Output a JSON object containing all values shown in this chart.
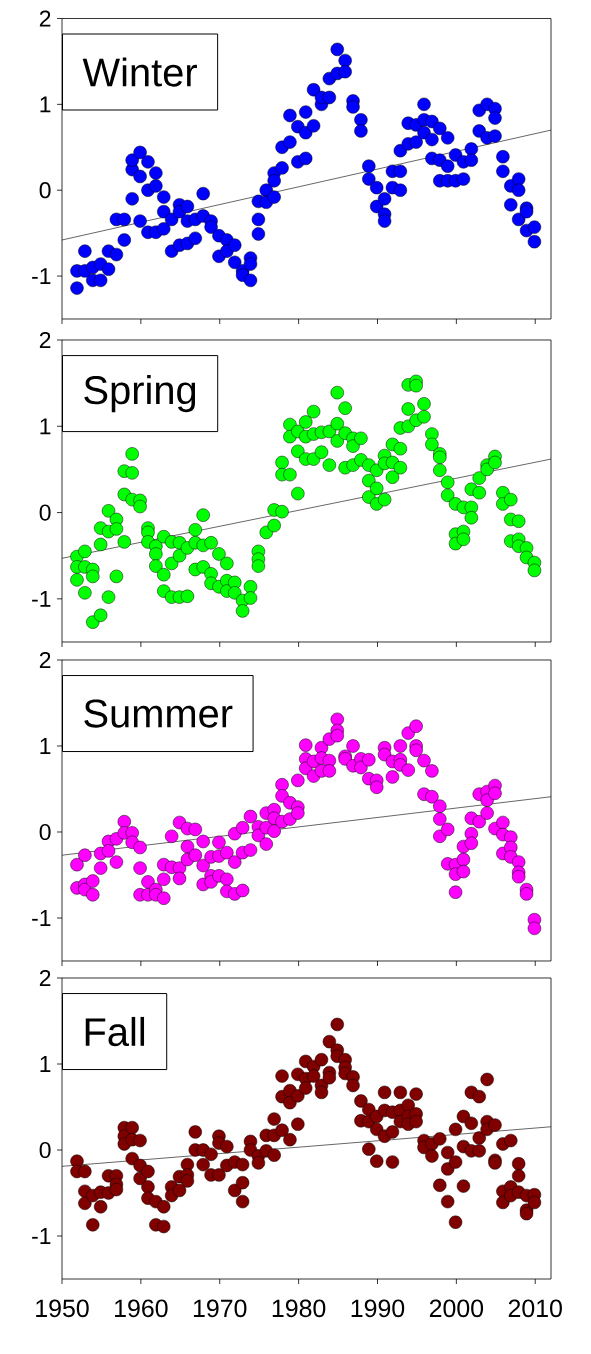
{
  "chart_data": [
    {
      "type": "scatter",
      "title": "Winter",
      "xlim": [
        1950,
        2012
      ],
      "ylim": [
        -1.5,
        2
      ],
      "xticks": [
        1950,
        1960,
        1970,
        1980,
        1990,
        2000,
        2010
      ],
      "yticks": [
        -1,
        0,
        1,
        2
      ],
      "tick_labels": "y",
      "marker": "circle",
      "series": [
        {
          "color": "#0000ff",
          "x": [
            1951.9,
            1951.9,
            1952.9,
            1952.9,
            1953.9,
            1953.9,
            1954.9,
            1954.9,
            1955.9,
            1955.9,
            1956.9,
            1956.9,
            1957.9,
            1957.9,
            1958.9,
            1958.9,
            1958.9,
            1959.9,
            1959.9,
            1959.9,
            1960.9,
            1960.9,
            1960.9,
            1961.9,
            1961.9,
            1961.9,
            1962.9,
            1962.9,
            1962.9,
            1963.9,
            1963.9,
            1964.9,
            1964.9,
            1964.9,
            1965.9,
            1965.9,
            1965.9,
            1966.9,
            1966.9,
            1967.9,
            1967.9,
            1968.9,
            1968.9,
            1969.9,
            1969.9,
            1970.9,
            1970.9,
            1971.9,
            1971.9,
            1972.9,
            1972.9,
            1973.9,
            1973.9,
            1973.9,
            1974.9,
            1974.9,
            1974.9,
            1975.9,
            1975.9,
            1976.9,
            1976.9,
            1976.9,
            1977.9,
            1977.9,
            1978.9,
            1978.9,
            1979.9,
            1979.9,
            1980.9,
            1980.9,
            1980.9,
            1981.9,
            1981.9,
            1982.9,
            1982.9,
            1983.9,
            1983.9,
            1984.9,
            1984.9,
            1985.9,
            1985.9,
            1986.9,
            1986.9,
            1987.9,
            1987.9,
            1988.9,
            1988.9,
            1989.9,
            1989.9,
            1990.9,
            1990.9,
            1990.9,
            1991.9,
            1991.9,
            1992.9,
            1992.9,
            1992.9,
            1993.9,
            1993.9,
            1994.9,
            1994.9,
            1995.9,
            1995.9,
            1995.9,
            1996.9,
            1996.9,
            1996.9,
            1997.9,
            1997.9,
            1997.9,
            1998.9,
            1998.9,
            1998.9,
            1999.9,
            1999.9,
            2000.9,
            2000.9,
            2001.9,
            2001.9,
            2002.9,
            2002.9,
            2003.9,
            2003.9,
            2004.9,
            2004.9,
            2004.9,
            2005.9,
            2005.9,
            2006.9,
            2006.9,
            2007.9,
            2007.9,
            2007.9,
            2008.9,
            2008.9,
            2008.9,
            2009.9,
            2009.9
          ],
          "values": [
            -1.14,
            -0.94,
            -0.71,
            -0.94,
            -1.05,
            -0.9,
            -1.05,
            -0.86,
            -0.92,
            -0.71,
            -0.75,
            -0.34,
            -0.34,
            -0.58,
            -0.1,
            0.24,
            0.35,
            0.44,
            0.16,
            -0.36,
            0.33,
            0.0,
            -0.49,
            0.2,
            0.05,
            -0.49,
            -0.08,
            -0.25,
            -0.45,
            -0.34,
            -0.71,
            -0.17,
            -0.25,
            -0.64,
            -0.19,
            -0.36,
            -0.62,
            -0.34,
            -0.56,
            -0.04,
            -0.3,
            -0.36,
            -0.43,
            -0.53,
            -0.77,
            -0.58,
            -0.71,
            -0.64,
            -0.84,
            -0.94,
            -0.99,
            -0.79,
            -0.86,
            -1.05,
            -0.13,
            -0.34,
            -0.51,
            0.0,
            -0.14,
            0.2,
            0.11,
            -0.08,
            0.5,
            0.26,
            0.56,
            0.87,
            0.74,
            0.33,
            0.91,
            0.67,
            0.37,
            1.17,
            0.75,
            1.0,
            1.08,
            1.3,
            1.08,
            1.64,
            1.36,
            1.51,
            1.38,
            1.04,
            0.97,
            0.82,
            0.69,
            0.28,
            0.13,
            0.03,
            -0.19,
            -0.1,
            -0.28,
            -0.36,
            0.22,
            0.03,
            0.46,
            0.22,
            0.0,
            0.78,
            0.54,
            0.76,
            0.56,
            1.0,
            0.82,
            0.67,
            0.8,
            0.59,
            0.37,
            0.72,
            0.35,
            0.11,
            0.61,
            0.28,
            0.11,
            0.41,
            0.11,
            0.33,
            0.13,
            0.48,
            0.35,
            0.93,
            0.69,
            1.0,
            0.61,
            0.95,
            0.84,
            0.63,
            0.39,
            0.22,
            0.05,
            -0.17,
            0.13,
            0.0,
            -0.34,
            -0.21,
            -0.25,
            -0.47,
            -0.43,
            -0.6
          ]
        },
        {
          "type": "line",
          "color": "#000000",
          "marker": "none",
          "x": [
            1950,
            2012
          ],
          "values": [
            -0.58,
            0.7
          ]
        }
      ]
    },
    {
      "type": "scatter",
      "title": "Spring",
      "xlim": [
        1950,
        2012
      ],
      "ylim": [
        -1.5,
        2
      ],
      "xticks": [
        1950,
        1960,
        1970,
        1980,
        1990,
        2000,
        2010
      ],
      "yticks": [
        -1,
        0,
        1,
        2
      ],
      "tick_labels": "y",
      "marker": "circle",
      "series": [
        {
          "color": "#00ff00",
          "x": [
            1951.9,
            1951.9,
            1951.9,
            1952.9,
            1952.9,
            1952.9,
            1953.9,
            1953.9,
            1953.9,
            1954.9,
            1954.9,
            1954.9,
            1955.9,
            1955.9,
            1955.9,
            1956.9,
            1956.9,
            1956.9,
            1957.9,
            1957.9,
            1957.9,
            1958.9,
            1958.9,
            1958.9,
            1959.9,
            1959.9,
            1960.9,
            1960.9,
            1960.9,
            1961.9,
            1961.9,
            1961.9,
            1962.9,
            1962.9,
            1962.9,
            1963.9,
            1963.9,
            1963.9,
            1964.9,
            1964.9,
            1964.9,
            1965.9,
            1965.9,
            1966.9,
            1966.9,
            1966.9,
            1967.9,
            1967.9,
            1967.9,
            1968.9,
            1968.9,
            1968.9,
            1969.9,
            1969.9,
            1970.9,
            1970.9,
            1970.9,
            1971.9,
            1971.9,
            1972.9,
            1972.9,
            1973.9,
            1973.9,
            1974.9,
            1974.9,
            1974.9,
            1975.9,
            1976.9,
            1976.9,
            1977.9,
            1977.9,
            1977.9,
            1978.9,
            1978.9,
            1978.9,
            1979.9,
            1979.9,
            1979.9,
            1980.9,
            1980.9,
            1980.9,
            1981.9,
            1981.9,
            1981.9,
            1982.9,
            1982.9,
            1983.9,
            1983.9,
            1984.9,
            1984.9,
            1984.9,
            1985.9,
            1985.9,
            1985.9,
            1986.9,
            1986.9,
            1986.9,
            1987.9,
            1987.9,
            1988.9,
            1988.9,
            1988.9,
            1989.9,
            1989.9,
            1989.9,
            1990.9,
            1990.9,
            1990.9,
            1991.9,
            1991.9,
            1991.9,
            1992.9,
            1992.9,
            1992.9,
            1993.9,
            1993.9,
            1993.9,
            1994.9,
            1994.9,
            1994.9,
            1995.9,
            1995.9,
            1996.9,
            1996.9,
            1997.9,
            1997.9,
            1997.9,
            1998.9,
            1998.9,
            1999.9,
            1999.9,
            1999.9,
            2000.9,
            2000.9,
            2000.9,
            2001.9,
            2001.9,
            2001.9,
            2002.9,
            2002.9,
            2003.9,
            2003.9,
            2004.9,
            2004.9,
            2005.9,
            2005.9,
            2006.9,
            2006.9,
            2006.9,
            2007.9,
            2007.9,
            2007.9,
            2008.9,
            2008.9,
            2009.9,
            2009.9
          ],
          "values": [
            -0.51,
            -0.63,
            -0.78,
            -0.45,
            -0.63,
            -0.93,
            -0.66,
            -0.74,
            -1.27,
            -0.18,
            -0.37,
            -1.19,
            0.02,
            -0.22,
            -0.98,
            -0.08,
            -0.19,
            -0.74,
            0.48,
            0.21,
            -0.34,
            0.68,
            0.46,
            0.15,
            0.14,
            0.07,
            -0.18,
            -0.23,
            -0.34,
            -0.39,
            -0.48,
            -0.62,
            -0.28,
            -0.72,
            -0.91,
            -0.34,
            -0.59,
            -0.98,
            -0.35,
            -0.5,
            -0.98,
            -0.41,
            -0.97,
            -0.2,
            -0.35,
            -0.66,
            -0.03,
            -0.38,
            -0.63,
            -0.35,
            -0.71,
            -0.82,
            -0.48,
            -0.86,
            -0.59,
            -0.79,
            -0.91,
            -0.81,
            -0.93,
            -1.02,
            -1.14,
            -0.86,
            -0.99,
            -0.45,
            -0.54,
            -0.62,
            -0.23,
            0.03,
            -0.15,
            0.58,
            0.44,
            0.01,
            1.02,
            0.88,
            0.44,
            0.94,
            0.71,
            0.22,
            1.05,
            0.88,
            0.62,
            1.17,
            0.91,
            0.62,
            0.93,
            0.7,
            0.94,
            0.55,
            1.39,
            1.03,
            0.83,
            1.21,
            0.92,
            0.52,
            0.86,
            0.77,
            0.55,
            0.86,
            0.61,
            0.55,
            0.37,
            0.18,
            0.49,
            0.28,
            0.1,
            0.66,
            0.57,
            0.15,
            0.79,
            0.58,
            0.41,
            0.98,
            0.74,
            0.52,
            1.48,
            1.2,
            1.0,
            1.52,
            1.47,
            1.07,
            1.26,
            1.11,
            0.91,
            0.79,
            0.68,
            0.64,
            0.49,
            0.35,
            0.2,
            0.1,
            -0.25,
            -0.36,
            0.06,
            -0.22,
            -0.31,
            0.27,
            0.06,
            -0.06,
            0.4,
            0.23,
            0.55,
            0.5,
            0.65,
            0.58,
            0.23,
            0.1,
            0.15,
            -0.08,
            -0.33,
            -0.1,
            -0.31,
            -0.39,
            -0.41,
            -0.52,
            -0.58,
            -0.67
          ]
        },
        {
          "type": "line",
          "color": "#000000",
          "marker": "none",
          "x": [
            1950,
            2012
          ],
          "values": [
            -0.53,
            0.62
          ]
        }
      ]
    },
    {
      "type": "scatter",
      "title": "Summer",
      "xlim": [
        1950,
        2012
      ],
      "ylim": [
        -1.5,
        2
      ],
      "xticks": [
        1950,
        1960,
        1970,
        1980,
        1990,
        2000,
        2010
      ],
      "yticks": [
        -1,
        0,
        1,
        2
      ],
      "tick_labels": "y",
      "marker": "circle",
      "series": [
        {
          "color": "#ff00ff",
          "x": [
            1951.9,
            1951.9,
            1952.9,
            1952.9,
            1952.9,
            1953.9,
            1953.9,
            1954.9,
            1954.9,
            1955.9,
            1955.9,
            1956.9,
            1956.9,
            1957.9,
            1957.9,
            1958.9,
            1958.9,
            1959.9,
            1959.9,
            1959.9,
            1960.9,
            1960.9,
            1961.9,
            1961.9,
            1962.9,
            1962.9,
            1962.9,
            1963.9,
            1963.9,
            1964.9,
            1964.9,
            1964.9,
            1965.9,
            1965.9,
            1965.9,
            1966.9,
            1966.9,
            1967.9,
            1967.9,
            1967.9,
            1968.9,
            1968.9,
            1968.9,
            1969.9,
            1969.9,
            1969.9,
            1970.9,
            1970.9,
            1970.9,
            1971.9,
            1971.9,
            1971.9,
            1972.9,
            1972.9,
            1972.9,
            1973.9,
            1973.9,
            1974.9,
            1974.9,
            1975.9,
            1975.9,
            1975.9,
            1976.9,
            1976.9,
            1976.9,
            1977.9,
            1977.9,
            1977.9,
            1978.9,
            1978.9,
            1979.9,
            1979.9,
            1979.9,
            1980.9,
            1980.9,
            1980.9,
            1981.9,
            1981.9,
            1982.9,
            1982.9,
            1982.9,
            1983.9,
            1983.9,
            1983.9,
            1984.9,
            1984.9,
            1984.9,
            1985.9,
            1985.9,
            1986.9,
            1986.9,
            1987.9,
            1987.9,
            1988.9,
            1988.9,
            1989.9,
            1989.9,
            1990.9,
            1990.9,
            1991.9,
            1991.9,
            1992.9,
            1992.9,
            1992.9,
            1993.9,
            1993.9,
            1994.9,
            1994.9,
            1994.9,
            1995.9,
            1995.9,
            1996.9,
            1996.9,
            1997.9,
            1997.9,
            1997.9,
            1998.9,
            1998.9,
            1999.9,
            1999.9,
            1999.9,
            2000.9,
            2000.9,
            2000.9,
            2001.9,
            2001.9,
            2001.9,
            2002.9,
            2002.9,
            2003.9,
            2003.9,
            2003.9,
            2004.9,
            2004.9,
            2004.9,
            2005.9,
            2005.9,
            2005.9,
            2006.9,
            2006.9,
            2006.9,
            2007.9,
            2007.9,
            2007.9,
            2008.9,
            2008.9,
            2009.9,
            2009.9
          ],
          "values": [
            -0.38,
            -0.65,
            -0.27,
            -0.61,
            -0.67,
            -0.57,
            -0.73,
            -0.25,
            -0.42,
            -0.11,
            -0.22,
            -0.08,
            -0.35,
            0.12,
            -0.01,
            -0.01,
            -0.12,
            -0.18,
            -0.42,
            -0.73,
            -0.58,
            -0.73,
            -0.67,
            -0.73,
            -0.38,
            -0.55,
            -0.77,
            -0.05,
            -0.41,
            0.11,
            -0.42,
            -0.54,
            0.04,
            -0.17,
            -0.32,
            0.03,
            -0.27,
            -0.11,
            -0.39,
            -0.61,
            -0.29,
            -0.51,
            -0.58,
            -0.12,
            -0.28,
            -0.51,
            -0.24,
            -0.55,
            -0.69,
            -0.02,
            -0.35,
            -0.72,
            0.05,
            -0.24,
            -0.68,
            0.18,
            -0.21,
            0.06,
            -0.04,
            0.22,
            0.05,
            -0.14,
            0.26,
            0.16,
            0.01,
            0.55,
            0.42,
            0.12,
            0.34,
            0.15,
            0.6,
            0.29,
            0.22,
            1.01,
            0.85,
            0.74,
            0.82,
            0.65,
            0.98,
            0.86,
            0.71,
            1.08,
            0.83,
            0.71,
            1.31,
            1.18,
            1.12,
            0.88,
            0.85,
            1.0,
            0.77,
            0.85,
            0.75,
            0.84,
            0.62,
            0.6,
            0.52,
            0.98,
            0.9,
            0.82,
            0.64,
            1.0,
            0.84,
            0.78,
            1.15,
            0.72,
            1.23,
            1.0,
            0.95,
            0.83,
            0.44,
            0.71,
            0.41,
            0.3,
            0.15,
            -0.05,
            0.03,
            -0.37,
            -0.38,
            -0.49,
            -0.7,
            -0.17,
            -0.32,
            -0.46,
            0.16,
            -0.02,
            -0.13,
            0.44,
            0.12,
            0.47,
            0.37,
            0.22,
            0.54,
            0.45,
            0.04,
            0.11,
            -0.03,
            -0.25,
            -0.06,
            -0.18,
            -0.29,
            -0.35,
            -0.47,
            -0.52,
            -0.67,
            -0.72,
            -1.02,
            -1.12
          ]
        },
        {
          "type": "line",
          "color": "#000000",
          "marker": "none",
          "x": [
            1950,
            2012
          ],
          "values": [
            -0.27,
            0.41
          ]
        }
      ]
    },
    {
      "type": "scatter",
      "title": "Fall",
      "xlim": [
        1950,
        2012
      ],
      "ylim": [
        -1.5,
        2
      ],
      "xticks": [
        1950,
        1960,
        1970,
        1980,
        1990,
        2000,
        2010
      ],
      "yticks": [
        -1,
        0,
        1,
        2
      ],
      "marker": "circle",
      "series": [
        {
          "color": "#800000",
          "x": [
            1951.9,
            1951.9,
            1952.9,
            1952.9,
            1952.9,
            1953.9,
            1953.9,
            1954.9,
            1954.9,
            1955.9,
            1955.9,
            1956.9,
            1956.9,
            1956.9,
            1957.9,
            1957.9,
            1957.9,
            1958.9,
            1958.9,
            1958.9,
            1959.9,
            1959.9,
            1959.9,
            1960.9,
            1960.9,
            1960.9,
            1961.9,
            1961.9,
            1962.9,
            1962.9,
            1963.9,
            1963.9,
            1964.9,
            1964.9,
            1965.9,
            1965.9,
            1965.9,
            1966.9,
            1966.9,
            1967.9,
            1967.9,
            1968.9,
            1968.9,
            1969.9,
            1969.9,
            1969.9,
            1970.9,
            1970.9,
            1971.9,
            1971.9,
            1972.9,
            1972.9,
            1972.9,
            1973.9,
            1973.9,
            1974.9,
            1974.9,
            1975.9,
            1975.9,
            1976.9,
            1976.9,
            1976.9,
            1977.9,
            1977.9,
            1977.9,
            1978.9,
            1978.9,
            1978.9,
            1979.9,
            1979.9,
            1979.9,
            1980.9,
            1980.9,
            1980.9,
            1981.9,
            1981.9,
            1982.9,
            1982.9,
            1982.9,
            1983.9,
            1983.9,
            1983.9,
            1984.9,
            1984.9,
            1984.9,
            1985.9,
            1985.9,
            1985.9,
            1986.9,
            1986.9,
            1987.9,
            1987.9,
            1988.9,
            1988.9,
            1988.9,
            1989.9,
            1989.9,
            1989.9,
            1990.9,
            1990.9,
            1990.9,
            1991.9,
            1991.9,
            1991.9,
            1992.9,
            1992.9,
            1992.9,
            1993.9,
            1993.9,
            1993.9,
            1994.9,
            1994.9,
            1994.9,
            1995.9,
            1995.9,
            1996.9,
            1996.9,
            1997.9,
            1997.9,
            1998.9,
            1998.9,
            1998.9,
            1999.9,
            1999.9,
            1999.9,
            2000.9,
            2000.9,
            2000.9,
            2001.9,
            2001.9,
            2001.9,
            2002.9,
            2002.9,
            2002.9,
            2003.9,
            2003.9,
            2003.9,
            2004.9,
            2004.9,
            2004.9,
            2005.9,
            2005.9,
            2005.9,
            2006.9,
            2006.9,
            2006.9,
            2007.9,
            2007.9,
            2007.9,
            2008.9,
            2008.9,
            2008.9,
            2009.9,
            2009.9
          ],
          "values": [
            -0.13,
            -0.25,
            -0.25,
            -0.48,
            -0.62,
            -0.53,
            -0.87,
            -0.49,
            -0.66,
            -0.3,
            -0.5,
            -0.3,
            -0.4,
            -0.46,
            0.26,
            0.16,
            0.07,
            0.26,
            0.12,
            -0.1,
            0.11,
            -0.18,
            -0.33,
            -0.25,
            -0.43,
            -0.56,
            -0.6,
            -0.87,
            -0.66,
            -0.89,
            -0.43,
            -0.53,
            -0.31,
            -0.47,
            -0.17,
            -0.29,
            -0.36,
            0.21,
            0.0,
            0.0,
            -0.17,
            -0.05,
            -0.29,
            0.16,
            0.08,
            -0.29,
            0.04,
            -0.18,
            -0.14,
            -0.47,
            -0.17,
            -0.38,
            -0.6,
            0.1,
            0.0,
            -0.07,
            -0.15,
            0.17,
            -0.01,
            0.36,
            0.17,
            -0.06,
            0.86,
            0.62,
            0.23,
            0.69,
            0.55,
            0.12,
            0.88,
            0.63,
            0.3,
            1.03,
            0.83,
            0.72,
            0.97,
            0.86,
            1.05,
            0.75,
            0.67,
            1.26,
            0.9,
            0.84,
            1.46,
            1.16,
            1.09,
            1.05,
            0.96,
            0.89,
            0.85,
            0.75,
            0.57,
            0.34,
            0.47,
            0.33,
            0.01,
            0.39,
            0.24,
            -0.13,
            0.67,
            0.46,
            0.16,
            0.44,
            0.21,
            -0.14,
            0.67,
            0.46,
            0.33,
            0.52,
            0.39,
            0.3,
            0.65,
            0.42,
            0.33,
            0.11,
            0.03,
            0.07,
            -0.07,
            0.13,
            -0.41,
            -0.03,
            -0.22,
            -0.6,
            0.24,
            -0.14,
            -0.84,
            0.39,
            0.04,
            -0.42,
            0.67,
            0.31,
            -0.01,
            0.62,
            0.14,
            -0.01,
            0.82,
            0.33,
            0.24,
            0.29,
            -0.12,
            -0.15,
            0.07,
            -0.48,
            -0.61,
            0.11,
            -0.43,
            -0.53,
            -0.16,
            -0.3,
            -0.49,
            -0.53,
            -0.7,
            -0.74,
            -0.52,
            -0.61
          ]
        },
        {
          "type": "line",
          "color": "#000000",
          "marker": "none",
          "x": [
            1950,
            2012
          ],
          "values": [
            -0.19,
            0.27
          ]
        }
      ]
    }
  ]
}
